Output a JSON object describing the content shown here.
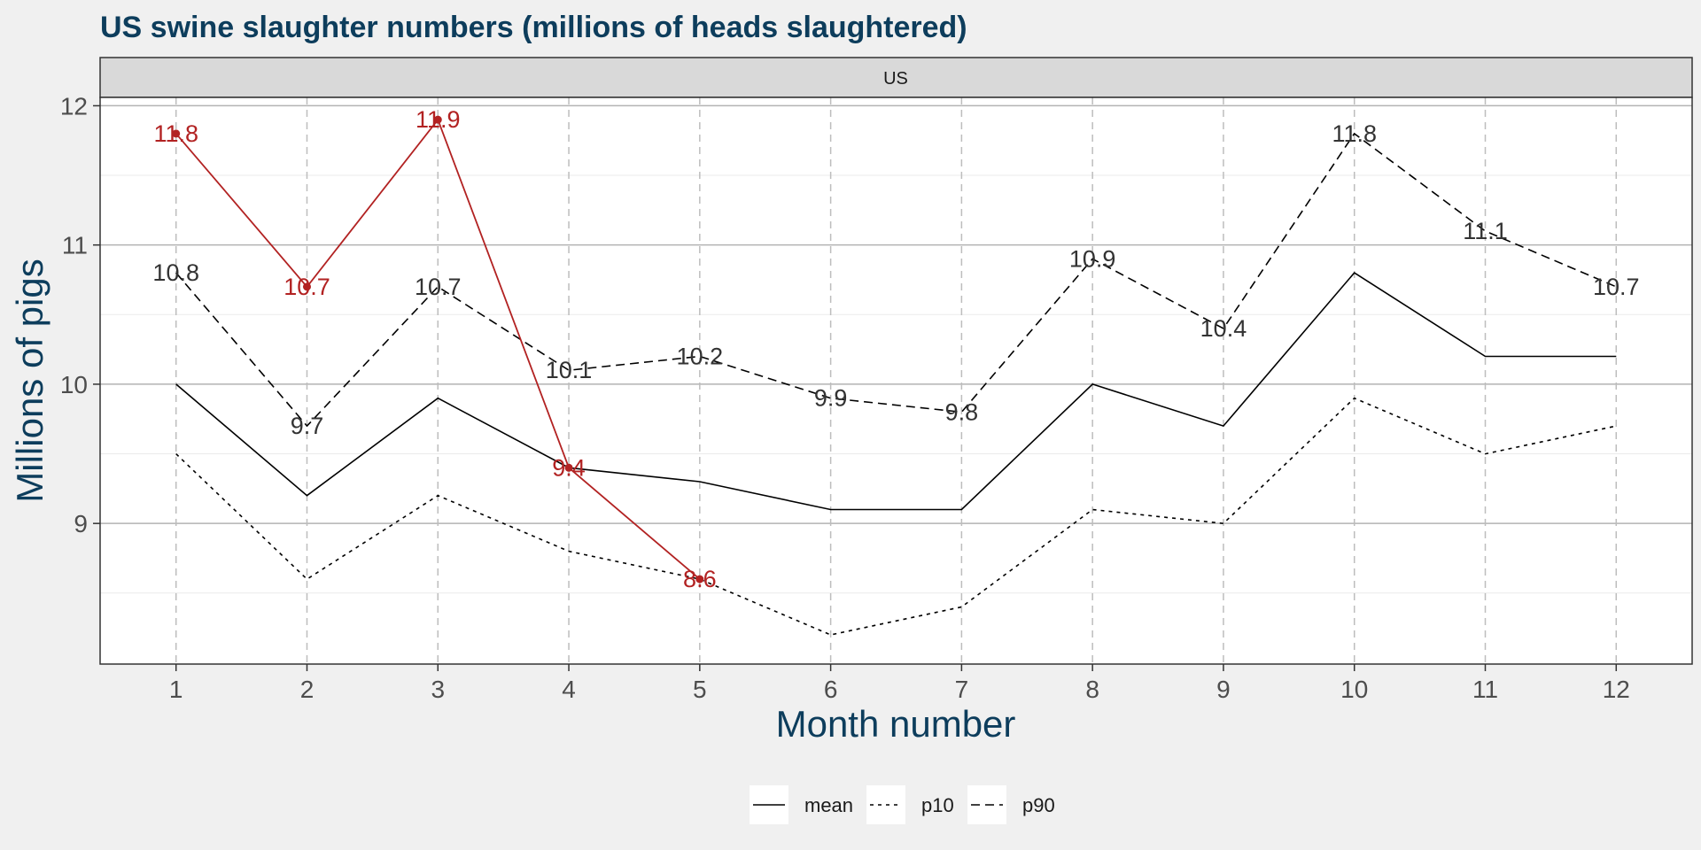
{
  "chart_data": {
    "type": "line",
    "title": "US swine slaughter numbers (millions of heads slaughtered)",
    "facet_label": "US",
    "xlabel": "Month number",
    "ylabel": "Millions of pigs",
    "x": [
      1,
      2,
      3,
      4,
      5,
      6,
      7,
      8,
      9,
      10,
      11,
      12
    ],
    "x_ticks": [
      "1",
      "2",
      "3",
      "4",
      "5",
      "6",
      "7",
      "8",
      "9",
      "10",
      "11",
      "12"
    ],
    "y_ticks": [
      "9",
      "10",
      "11",
      "12"
    ],
    "xlim": [
      0.42,
      12.58
    ],
    "ylim": [
      7.99,
      12.06
    ],
    "grid": true,
    "legend_position": "bottom",
    "colors": {
      "title": "#0d3d5c",
      "current": "#b22222",
      "series": "#000000",
      "label": "#333333"
    },
    "series": [
      {
        "name": "mean",
        "linestyle": "solid",
        "values": [
          10.0,
          9.2,
          9.9,
          9.4,
          9.3,
          9.1,
          9.1,
          10.0,
          9.7,
          10.8,
          10.2,
          10.2
        ]
      },
      {
        "name": "p10",
        "linestyle": "dotted",
        "values": [
          9.5,
          8.6,
          9.2,
          8.8,
          8.6,
          8.2,
          8.4,
          9.1,
          9.0,
          9.9,
          9.5,
          9.7
        ]
      },
      {
        "name": "p90",
        "linestyle": "dashed",
        "values": [
          10.8,
          9.7,
          10.7,
          10.1,
          10.2,
          9.9,
          9.8,
          10.9,
          10.4,
          11.8,
          11.1,
          10.7
        ],
        "labels": [
          "10.8",
          "9.7",
          "10.7",
          "10.1",
          "10.2",
          "9.9",
          "9.8",
          "10.9",
          "10.4",
          "11.8",
          "11.1",
          "10.7"
        ]
      }
    ],
    "current_year": {
      "x": [
        1,
        2,
        3,
        4,
        5
      ],
      "values": [
        11.8,
        10.7,
        11.9,
        9.4,
        8.6
      ],
      "labels": [
        "11.8",
        "10.7",
        "11.9",
        "9.4",
        "8.6"
      ]
    }
  }
}
